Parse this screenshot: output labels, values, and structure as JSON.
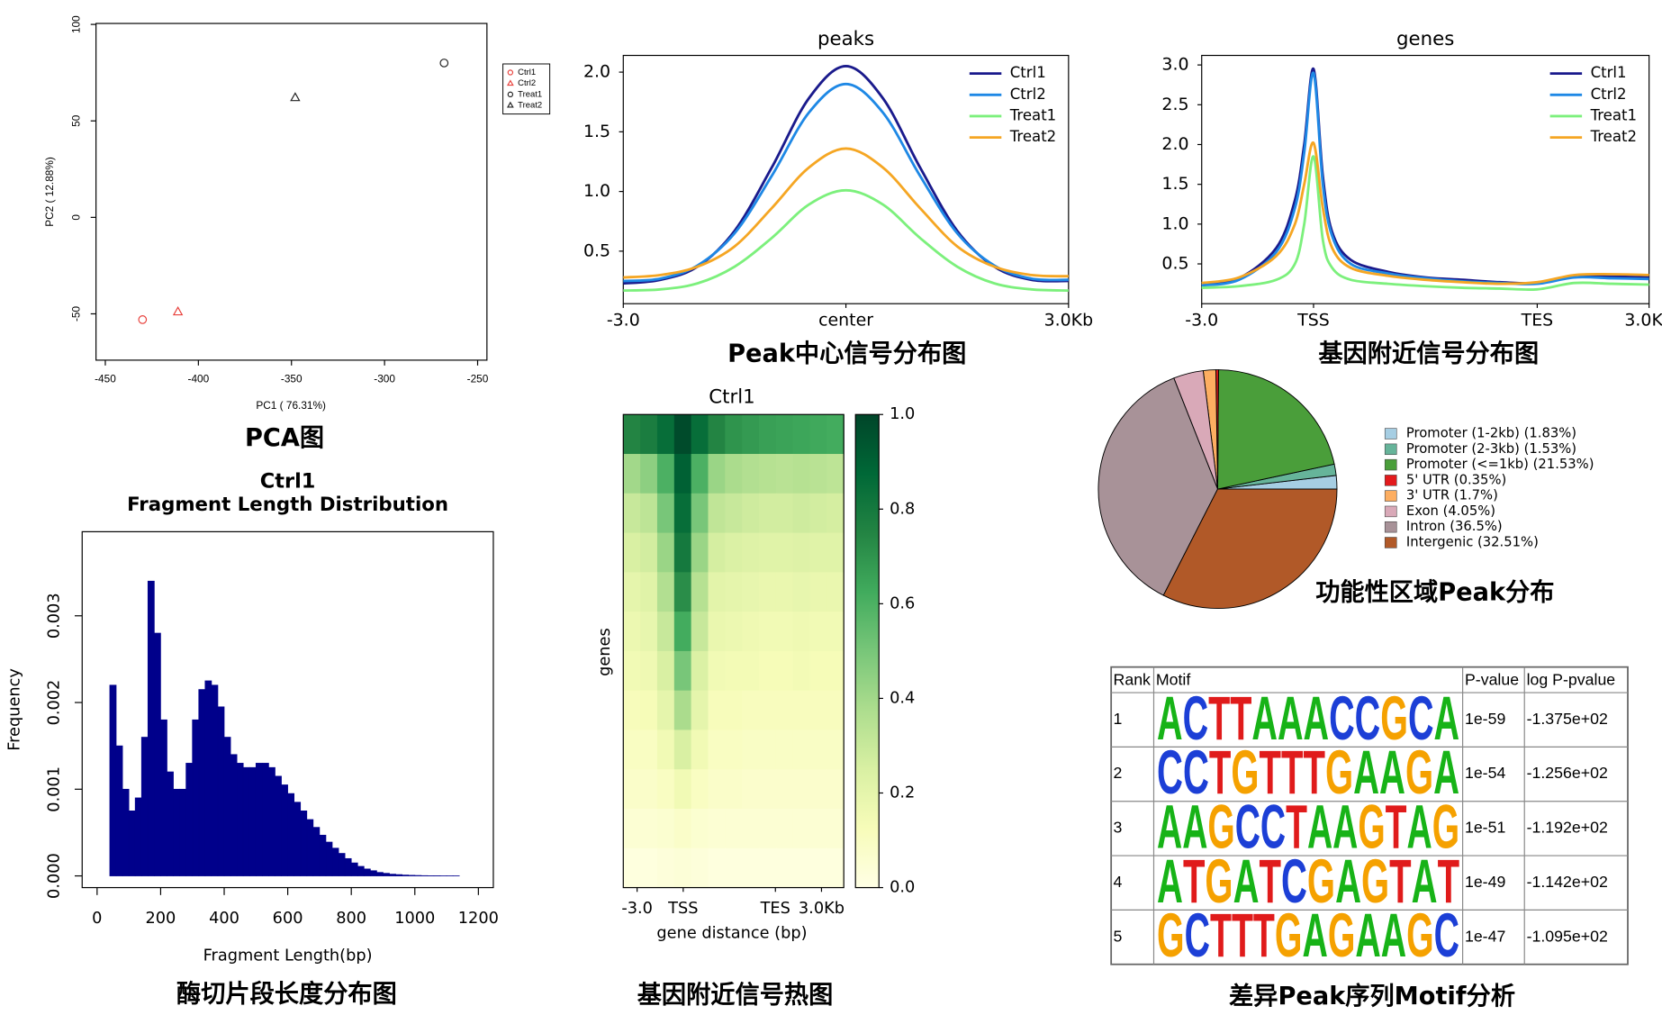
{
  "chart_data": [
    {
      "type": "scatter",
      "caption": "PCA图",
      "xlabel": "PC1 ( 76.31%)",
      "ylabel": "PC2 ( 12.88%)",
      "xlim": [
        -455,
        -245
      ],
      "xticks": [
        -450,
        -400,
        -350,
        -300,
        -250
      ],
      "ylim": [
        -74,
        100.5
      ],
      "yticks": [
        -50,
        0,
        50,
        100
      ],
      "legend": "right",
      "series": [
        {
          "name": "Ctrl1",
          "color": "#e8413c",
          "marker": "circle",
          "x": [
            -430
          ],
          "values": [
            -53
          ]
        },
        {
          "name": "Ctrl2",
          "color": "#e8413c",
          "marker": "triangle",
          "x": [
            -411
          ],
          "values": [
            -49
          ]
        },
        {
          "name": "Treat1",
          "color": "#222222",
          "marker": "circle",
          "x": [
            -268
          ],
          "values": [
            80
          ]
        },
        {
          "name": "Treat2",
          "color": "#222222",
          "marker": "triangle",
          "x": [
            -348
          ],
          "values": [
            62
          ]
        }
      ]
    },
    {
      "type": "line",
      "title": "peaks",
      "caption": "Peak中心信号分布图",
      "x": [
        -3,
        -2.5,
        -2,
        -1.5,
        -1,
        -0.5,
        0,
        0.5,
        1,
        1.5,
        2,
        2.5,
        3
      ],
      "xlim": [
        -3,
        3
      ],
      "xticks": [
        {
          "value": -3,
          "label": "-3.0"
        },
        {
          "value": 0,
          "label": "center"
        },
        {
          "value": 3,
          "label": "3.0Kb"
        }
      ],
      "ylim": [
        0.06,
        2.14
      ],
      "yticks": [
        0.5,
        {
          "value": 1,
          "label": "1.0"
        },
        1.5,
        {
          "value": 2,
          "label": "2.0"
        }
      ],
      "legend": "upper right",
      "series": [
        {
          "name": "Ctrl1",
          "color": "#1a1a8c",
          "values": [
            0.23,
            0.26,
            0.37,
            0.67,
            1.2,
            1.78,
            2.05,
            1.78,
            1.2,
            0.67,
            0.37,
            0.26,
            0.25
          ]
        },
        {
          "name": "Ctrl2",
          "color": "#1e88e5",
          "values": [
            0.25,
            0.27,
            0.38,
            0.65,
            1.13,
            1.66,
            1.9,
            1.66,
            1.13,
            0.65,
            0.38,
            0.27,
            0.26
          ]
        },
        {
          "name": "Treat1",
          "color": "#7cf07c",
          "values": [
            0.17,
            0.18,
            0.23,
            0.37,
            0.61,
            0.89,
            1.01,
            0.89,
            0.61,
            0.37,
            0.23,
            0.18,
            0.17
          ]
        },
        {
          "name": "Treat2",
          "color": "#f5a623",
          "values": [
            0.28,
            0.3,
            0.37,
            0.54,
            0.86,
            1.2,
            1.36,
            1.2,
            0.86,
            0.54,
            0.37,
            0.3,
            0.29
          ]
        }
      ]
    },
    {
      "type": "line",
      "title": "genes",
      "caption": "基因附近信号分布图",
      "x": [
        -3,
        -2,
        -1,
        -0.5,
        -0.25,
        0,
        0.25,
        0.5,
        1,
        2,
        3,
        4,
        5,
        6,
        7,
        8,
        9
      ],
      "xlim": [
        -3,
        9
      ],
      "xticks": [
        {
          "value": -3,
          "label": "-3.0"
        },
        {
          "value": 0,
          "label": "TSS"
        },
        {
          "value": 6,
          "label": "TES"
        },
        {
          "value": 9,
          "label": "3.0Kb"
        }
      ],
      "ylim": [
        0,
        3.12
      ],
      "yticks": [
        0.5,
        {
          "value": 1,
          "label": "1.0"
        },
        1.5,
        {
          "value": 2,
          "label": "2.0"
        },
        2.5,
        {
          "value": 3,
          "label": "3.0"
        }
      ],
      "legend": "upper right",
      "series": [
        {
          "name": "Ctrl1",
          "color": "#1a1a8c",
          "values": [
            0.24,
            0.32,
            0.7,
            1.3,
            2.0,
            2.95,
            1.6,
            0.9,
            0.55,
            0.4,
            0.33,
            0.3,
            0.27,
            0.26,
            0.35,
            0.34,
            0.33
          ]
        },
        {
          "name": "Ctrl2",
          "color": "#1e88e5",
          "values": [
            0.23,
            0.3,
            0.65,
            1.2,
            1.9,
            2.9,
            1.5,
            0.85,
            0.5,
            0.38,
            0.32,
            0.28,
            0.26,
            0.25,
            0.33,
            0.32,
            0.31
          ]
        },
        {
          "name": "Treat1",
          "color": "#7cf07c",
          "values": [
            0.2,
            0.22,
            0.3,
            0.5,
            1.0,
            1.85,
            0.8,
            0.45,
            0.3,
            0.25,
            0.22,
            0.2,
            0.19,
            0.18,
            0.26,
            0.25,
            0.24
          ]
        },
        {
          "name": "Treat2",
          "color": "#f5a623",
          "values": [
            0.26,
            0.33,
            0.6,
            1.0,
            1.5,
            2.02,
            1.2,
            0.7,
            0.45,
            0.35,
            0.3,
            0.27,
            0.25,
            0.27,
            0.36,
            0.37,
            0.36
          ]
        }
      ]
    },
    {
      "type": "histogram",
      "title": "Ctrl1",
      "subtitle": "Fragment Length Distribution",
      "caption": "酶切片段长度分布图",
      "xlabel": "Fragment Length(bp)",
      "ylabel": "Frequency",
      "color": "#00008b",
      "xlim": [
        -47,
        1247
      ],
      "xticks": [
        0,
        200,
        400,
        600,
        800,
        1000,
        1200
      ],
      "ylim": [
        -0.000135,
        0.00397
      ],
      "yticks": [
        {
          "value": 0,
          "label": "0.000"
        },
        0.001,
        0.002,
        0.003
      ],
      "bins": [
        40,
        60,
        80,
        100,
        120,
        140,
        160,
        180,
        200,
        220,
        240,
        260,
        280,
        300,
        320,
        340,
        360,
        380,
        400,
        420,
        440,
        460,
        480,
        500,
        520,
        540,
        560,
        580,
        600,
        620,
        640,
        660,
        680,
        700,
        720,
        740,
        760,
        780,
        800,
        820,
        840,
        860,
        880,
        900,
        920,
        940,
        960,
        980,
        1000,
        1020,
        1040,
        1060,
        1080,
        1100,
        1120,
        1140,
        1160,
        1180,
        1200
      ],
      "values": [
        0.0022,
        0.0015,
        0.001,
        0.00075,
        0.0009,
        0.0016,
        0.0034,
        0.0028,
        0.0018,
        0.0012,
        0.001,
        0.001,
        0.0013,
        0.0018,
        0.00215,
        0.00225,
        0.0022,
        0.00195,
        0.0016,
        0.0014,
        0.0013,
        0.00125,
        0.00125,
        0.0013,
        0.0013,
        0.00125,
        0.00115,
        0.00105,
        0.00095,
        0.00085,
        0.00075,
        0.00065,
        0.00056,
        0.00047,
        0.00039,
        0.00032,
        0.00026,
        0.0002,
        0.00015,
        0.00011,
        8e-05,
        6e-05,
        4e-05,
        3e-05,
        2e-05,
        1.5e-05,
        1e-05,
        7e-06,
        5e-06,
        3e-06,
        2e-06,
        2e-06,
        1e-06,
        1e-06,
        1e-06,
        0,
        0,
        0
      ]
    },
    {
      "type": "heatmap",
      "title": "Ctrl1",
      "caption": "基因附近信号热图",
      "xlabel": "gene distance (bp)",
      "ylabel": "genes",
      "xlim": [
        -3.9,
        10.45
      ],
      "xticks": [
        {
          "value": -3,
          "label": "-3.0"
        },
        {
          "value": 0,
          "label": "TSS"
        },
        {
          "value": 6,
          "label": "TES"
        },
        {
          "value": 9,
          "label": "3.0Kb"
        }
      ],
      "clim": [
        0,
        1
      ],
      "cticks": [
        {
          "value": 0,
          "label": "0.0"
        },
        0.2,
        0.4,
        0.6,
        0.8,
        {
          "value": 1,
          "label": "1.0"
        }
      ],
      "colors": [
        "#ffffe5",
        "#f7fcb9",
        "#d9f0a3",
        "#addd8e",
        "#78c679",
        "#41ab5d",
        "#238443",
        "#006837",
        "#004529"
      ],
      "values": [
        [
          0.75,
          0.78,
          0.85,
          0.98,
          0.85,
          0.75,
          0.7,
          0.68,
          0.66,
          0.65,
          0.64,
          0.63,
          0.62
        ],
        [
          0.4,
          0.45,
          0.6,
          0.9,
          0.6,
          0.42,
          0.38,
          0.36,
          0.35,
          0.34,
          0.35,
          0.34,
          0.33
        ],
        [
          0.3,
          0.33,
          0.5,
          0.85,
          0.5,
          0.32,
          0.3,
          0.28,
          0.27,
          0.27,
          0.28,
          0.27,
          0.26
        ],
        [
          0.25,
          0.27,
          0.42,
          0.8,
          0.42,
          0.26,
          0.24,
          0.23,
          0.22,
          0.22,
          0.23,
          0.22,
          0.22
        ],
        [
          0.2,
          0.22,
          0.36,
          0.72,
          0.35,
          0.21,
          0.2,
          0.19,
          0.18,
          0.18,
          0.19,
          0.18,
          0.18
        ],
        [
          0.17,
          0.19,
          0.3,
          0.62,
          0.3,
          0.18,
          0.17,
          0.16,
          0.15,
          0.15,
          0.16,
          0.15,
          0.15
        ],
        [
          0.15,
          0.16,
          0.25,
          0.5,
          0.24,
          0.15,
          0.14,
          0.14,
          0.13,
          0.13,
          0.14,
          0.13,
          0.13
        ],
        [
          0.12,
          0.13,
          0.2,
          0.38,
          0.2,
          0.12,
          0.12,
          0.11,
          0.11,
          0.11,
          0.11,
          0.11,
          0.11
        ],
        [
          0.1,
          0.1,
          0.15,
          0.25,
          0.15,
          0.1,
          0.1,
          0.09,
          0.09,
          0.09,
          0.09,
          0.09,
          0.09
        ],
        [
          0.08,
          0.08,
          0.1,
          0.15,
          0.1,
          0.08,
          0.08,
          0.07,
          0.07,
          0.07,
          0.07,
          0.07,
          0.07
        ],
        [
          0.05,
          0.05,
          0.06,
          0.08,
          0.06,
          0.05,
          0.05,
          0.05,
          0.05,
          0.05,
          0.05,
          0.05,
          0.05
        ],
        [
          0.02,
          0.02,
          0.03,
          0.04,
          0.03,
          0.02,
          0.02,
          0.02,
          0.02,
          0.02,
          0.02,
          0.02,
          0.02
        ]
      ]
    },
    {
      "type": "pie",
      "caption": "功能性区域Peak分布",
      "startangle": 0,
      "counterclock": true,
      "legend": "right",
      "categories": [
        "Promoter (1-2kb) (1.83%)",
        "Promoter (2-3kb) (1.53%)",
        "Promoter (<=1kb) (21.53%)",
        "5' UTR (0.35%)",
        "3' UTR (1.7%)",
        "Exon (4.05%)",
        "Intron (36.5%)",
        "Intergenic (32.51%)"
      ],
      "values": [
        1.83,
        1.53,
        21.53,
        0.35,
        1.7,
        4.05,
        36.5,
        32.51
      ],
      "colors": [
        "#a6cee3",
        "#66b49a",
        "#4a9e3a",
        "#e31a1c",
        "#fdae61",
        "#d9a9b8",
        "#a89298",
        "#b15928"
      ]
    }
  ],
  "table": {
    "caption": "差异Peak序列Motif分析",
    "columns": [
      "Rank",
      "Motif",
      "P-value",
      "log P-pvalue"
    ],
    "rows": [
      [
        "1",
        "ACTTAAACCGCA",
        "1e-59",
        "-1.375e+02"
      ],
      [
        "2",
        "CCTGTTTGAAGA",
        "1e-54",
        "-1.256e+02"
      ],
      [
        "3",
        "AAGCCTAAGTAG",
        "1e-51",
        "-1.192e+02"
      ],
      [
        "4",
        "ATGATCGAGTAT",
        "1e-49",
        "-1.142e+02"
      ],
      [
        "5",
        "GCTTTGAGAAGC",
        "1e-47",
        "-1.095e+02"
      ]
    ],
    "letter_colors": {
      "A": "#17b317",
      "C": "#1c3fd6",
      "G": "#f5a100",
      "T": "#e01b1b"
    }
  }
}
